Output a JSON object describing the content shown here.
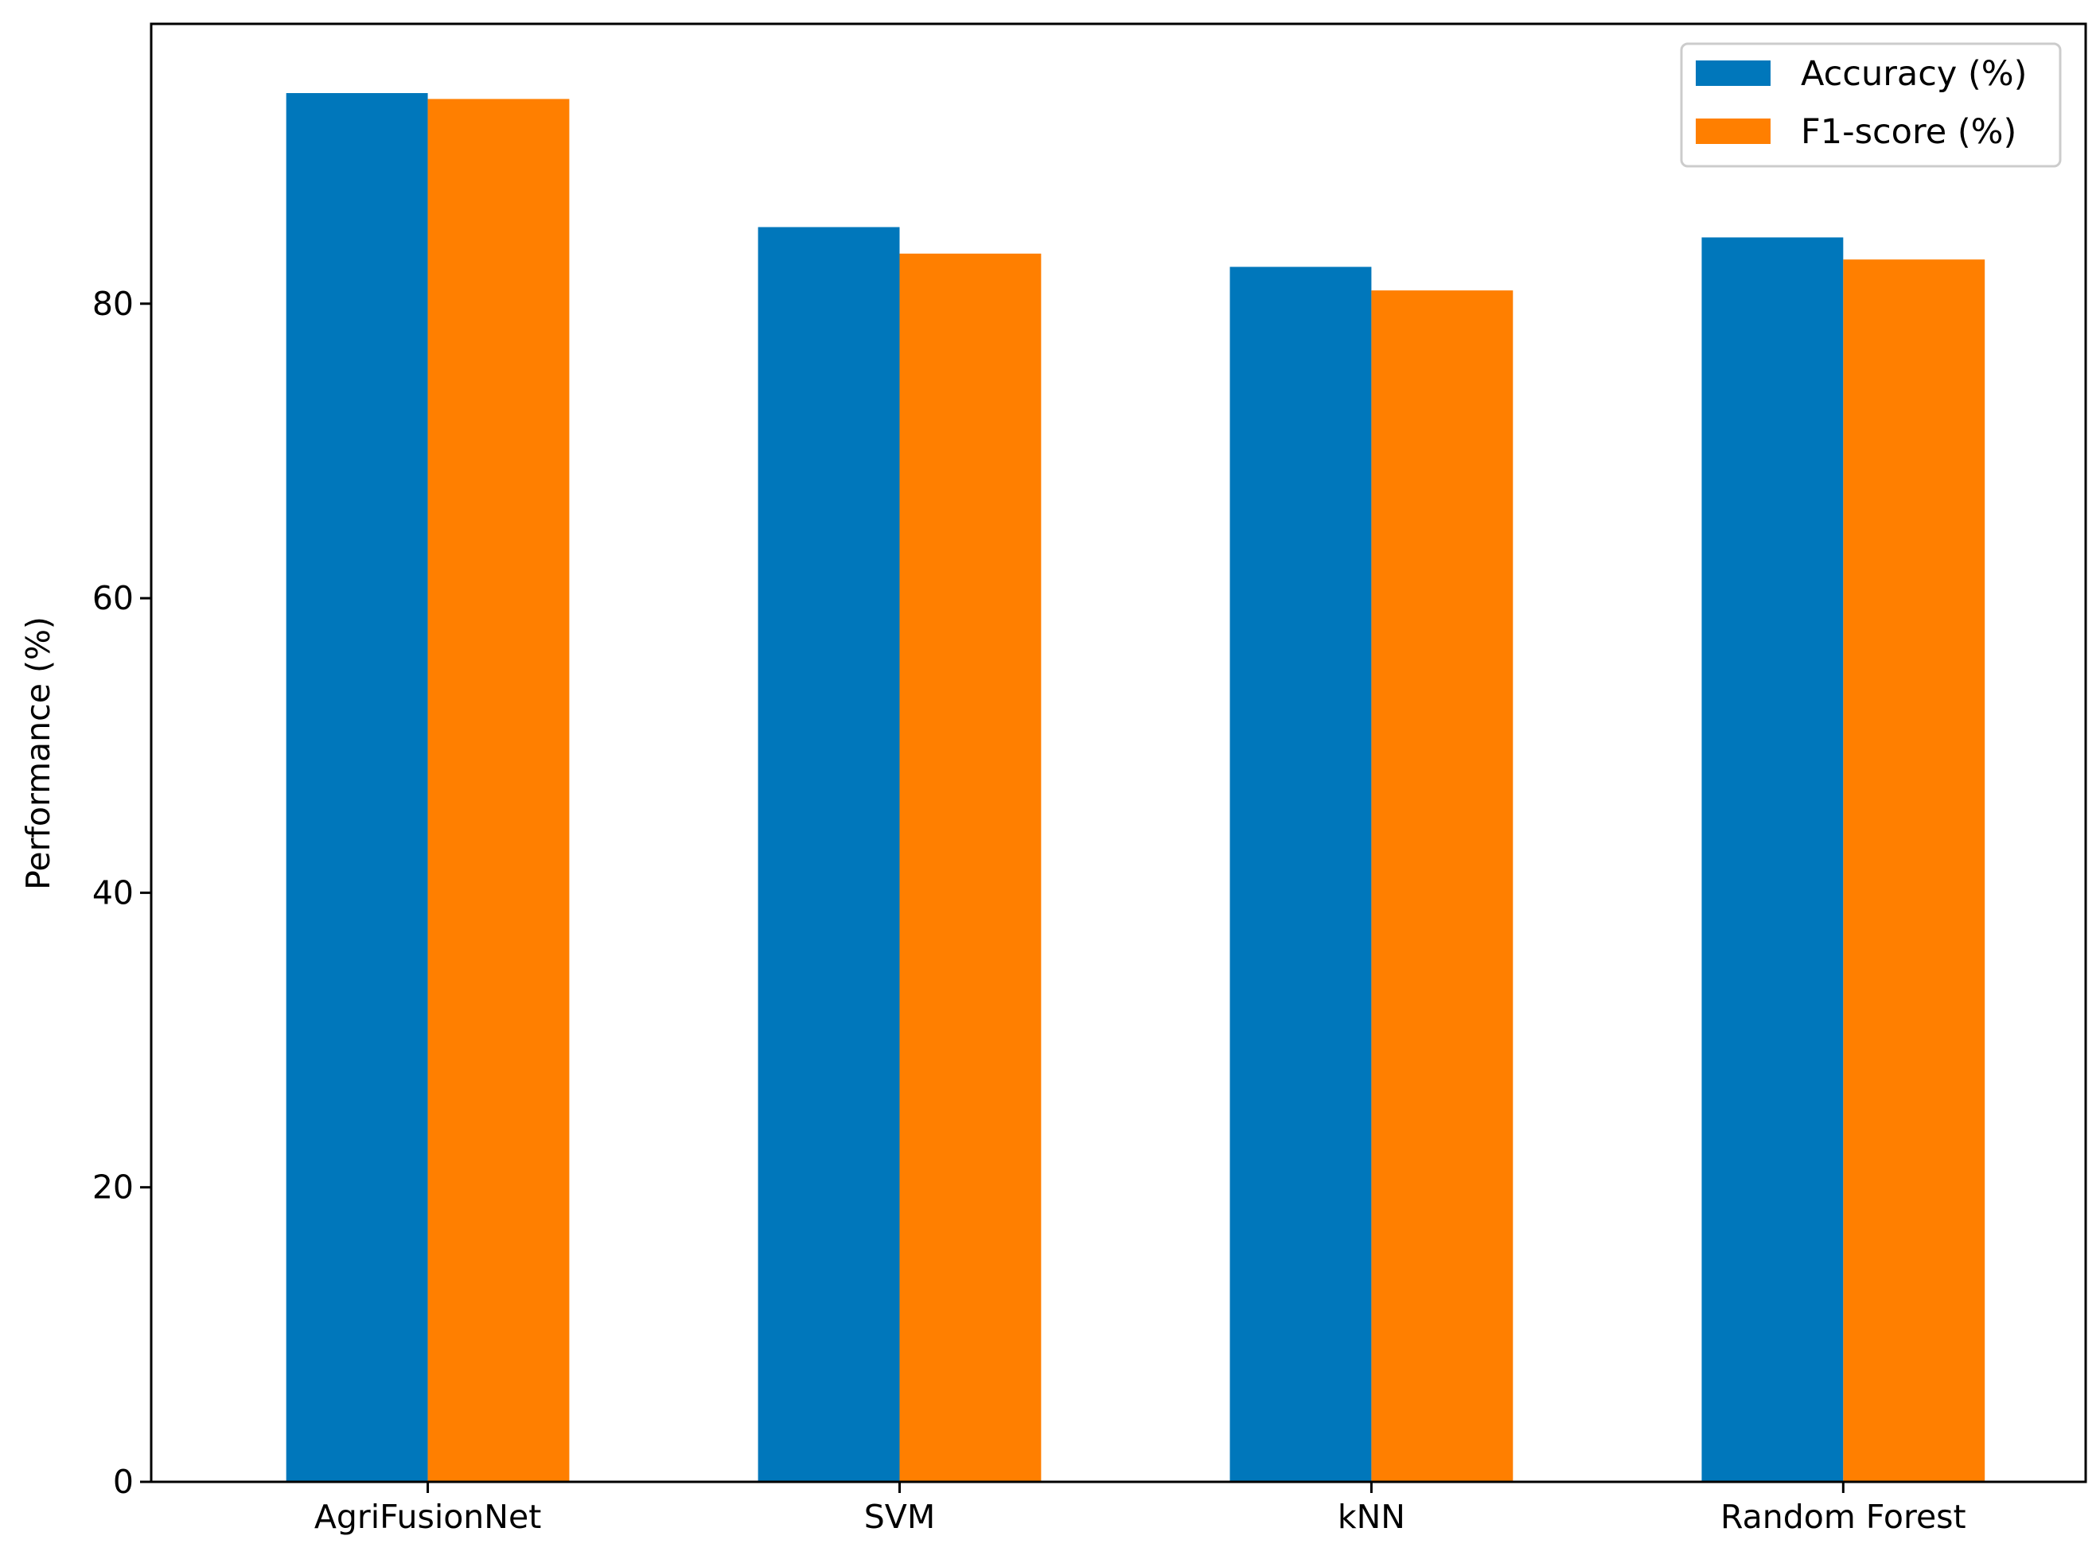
{
  "chart_data": {
    "type": "bar",
    "title": "",
    "xlabel": "",
    "ylabel": "Performance (%)",
    "categories": [
      "AgriFusionNet",
      "SVM",
      "kNN",
      "Random Forest"
    ],
    "series": [
      {
        "name": "Accuracy (%)",
        "values": [
          94.3,
          85.2,
          82.5,
          84.5
        ],
        "color": "#0077bb"
      },
      {
        "name": "F1-score (%)",
        "values": [
          93.9,
          83.4,
          80.9,
          83.0
        ],
        "color": "#ff7f00"
      }
    ],
    "ylim": [
      0,
      99
    ],
    "yticks": [
      0,
      20,
      40,
      60,
      80
    ],
    "grid": false,
    "legend_position": "top-right"
  }
}
